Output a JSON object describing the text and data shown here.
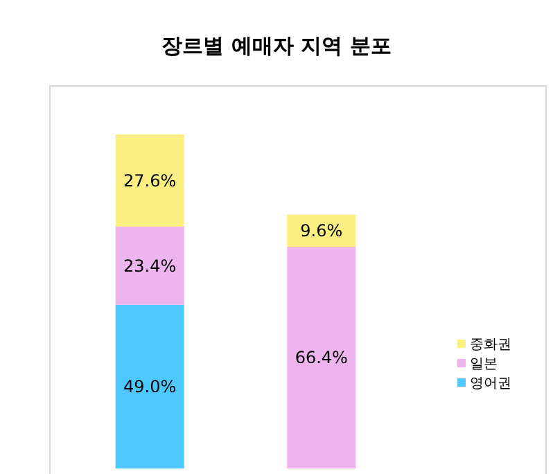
{
  "chart_data": {
    "type": "bar",
    "title": "장르별 예매자 지역 분포",
    "stacked": true,
    "legend": "right",
    "categories": [
      null,
      null
    ],
    "series": [
      {
        "name": "영어권",
        "color": "#4dc9ff",
        "values": [
          49.0,
          null
        ],
        "value_labels": [
          "49.0%",
          null
        ]
      },
      {
        "name": "일본",
        "color": "#eeb4ee",
        "values": [
          23.4,
          66.4
        ],
        "value_labels": [
          "23.4%",
          "66.4%"
        ]
      },
      {
        "name": "중화권",
        "color": "#fbef82",
        "values": [
          27.6,
          9.6
        ],
        "value_labels": [
          "27.6%",
          "9.6%"
        ]
      }
    ]
  }
}
